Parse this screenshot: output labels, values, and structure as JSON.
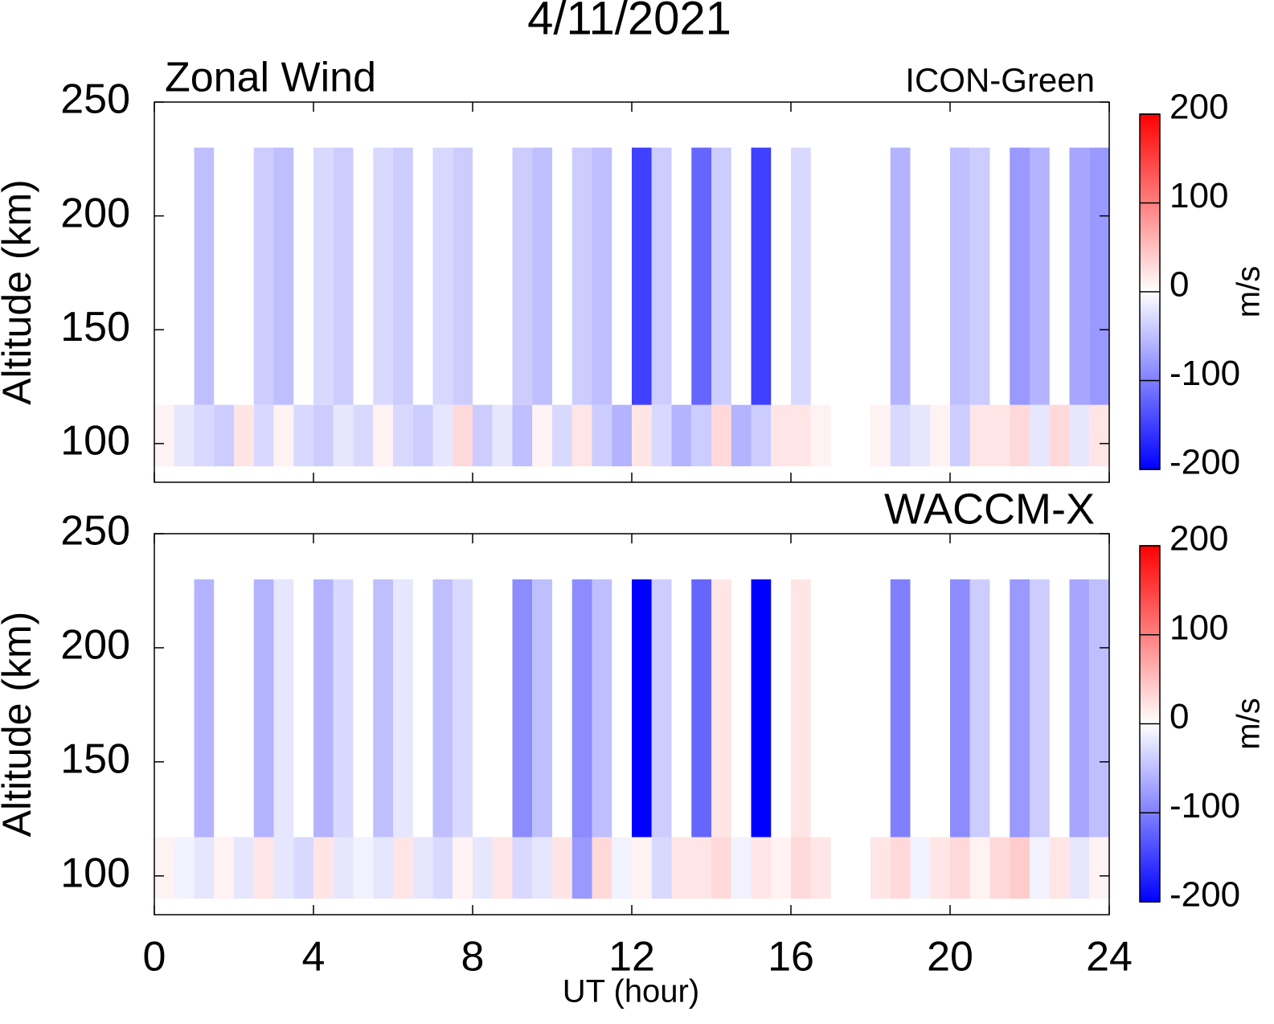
{
  "chart_data": [
    {
      "type": "heatmap",
      "title": "4/11/2021",
      "subtitle": "Zonal Wind",
      "annotation": "ICON-Green",
      "ylabel": "Altitude (km)",
      "xlim": [
        0,
        24
      ],
      "xticks": [
        0,
        4,
        8,
        12,
        16,
        20,
        24
      ],
      "ylim": [
        83,
        250
      ],
      "yticks": [
        100,
        150,
        200,
        250
      ],
      "x": [
        0,
        0.5,
        1,
        1.5,
        2,
        2.5,
        3,
        3.5,
        4,
        4.5,
        5,
        5.5,
        6,
        6.5,
        7,
        7.5,
        8,
        8.5,
        9,
        9.5,
        10,
        10.5,
        11,
        11.5,
        12,
        12.5,
        13,
        13.5,
        14,
        14.5,
        15,
        15.5,
        16,
        16.5,
        17,
        17.5,
        18,
        18.5,
        19,
        19.5,
        20,
        20.5,
        21,
        21.5,
        22,
        22.5,
        23,
        23.5,
        24
      ],
      "y": [
        90,
        117,
        230
      ],
      "values": [
        [
          10,
          -20,
          -30,
          -40,
          20,
          -30,
          10,
          -30,
          -40,
          -20,
          -30,
          10,
          -30,
          -40,
          -20,
          30,
          -40,
          -20,
          -50,
          10,
          -30,
          20,
          -40,
          -60,
          20,
          -30,
          -60,
          -40,
          30,
          -60,
          -40,
          20,
          20,
          10,
          null,
          null,
          10,
          -30,
          -20,
          10,
          -40,
          20,
          20,
          30,
          -20,
          30,
          -20,
          20
        ],
        [
          null,
          null,
          -50,
          null,
          null,
          -40,
          -50,
          null,
          -30,
          -40,
          null,
          -30,
          -40,
          null,
          -30,
          -40,
          null,
          null,
          -40,
          -50,
          null,
          -40,
          -50,
          null,
          -150,
          -40,
          null,
          -120,
          -40,
          null,
          -150,
          null,
          -30,
          null,
          null,
          null,
          null,
          -60,
          null,
          null,
          -50,
          -40,
          null,
          -80,
          -60,
          null,
          -70,
          -80
        ]
      ],
      "clim": [
        -200,
        200
      ],
      "cticks": [
        -200,
        -100,
        0,
        100,
        200
      ],
      "clabel": "m/s",
      "colors": [
        "#0000ff",
        "#ffffff",
        "#ff0000"
      ]
    },
    {
      "type": "heatmap",
      "annotation": "WACCM-X",
      "ylabel": "Altitude (km)",
      "xlabel": "UT (hour)",
      "xlim": [
        0,
        24
      ],
      "xticks": [
        0,
        4,
        8,
        12,
        16,
        20,
        24
      ],
      "ylim": [
        83,
        250
      ],
      "yticks": [
        100,
        150,
        200,
        250
      ],
      "x": [
        0,
        0.5,
        1,
        1.5,
        2,
        2.5,
        3,
        3.5,
        4,
        4.5,
        5,
        5.5,
        6,
        6.5,
        7,
        7.5,
        8,
        8.5,
        9,
        9.5,
        10,
        10.5,
        11,
        11.5,
        12,
        12.5,
        13,
        13.5,
        14,
        14.5,
        15,
        15.5,
        16,
        16.5,
        17,
        17.5,
        18,
        18.5,
        19,
        19.5,
        20,
        20.5,
        21,
        21.5,
        22,
        22.5,
        23,
        23.5,
        24
      ],
      "y": [
        90,
        117,
        230
      ],
      "values": [
        [
          10,
          -10,
          -20,
          10,
          -20,
          20,
          -20,
          -30,
          20,
          -20,
          -10,
          -20,
          20,
          -20,
          -30,
          10,
          -20,
          20,
          -30,
          -20,
          20,
          -80,
          30,
          -10,
          10,
          -30,
          20,
          20,
          30,
          -10,
          20,
          10,
          30,
          20,
          null,
          null,
          20,
          30,
          -10,
          20,
          30,
          10,
          30,
          40,
          -10,
          20,
          -20,
          10
        ],
        [
          null,
          null,
          -60,
          null,
          null,
          -60,
          -20,
          null,
          -60,
          -30,
          null,
          -50,
          -20,
          null,
          -50,
          -30,
          null,
          null,
          -90,
          -50,
          null,
          -90,
          -50,
          null,
          -200,
          -40,
          null,
          -120,
          20,
          null,
          -200,
          null,
          20,
          null,
          null,
          null,
          null,
          -100,
          null,
          null,
          -90,
          -40,
          null,
          -80,
          -40,
          null,
          -70,
          -50
        ]
      ],
      "clim": [
        -200,
        200
      ],
      "cticks": [
        -200,
        -100,
        0,
        100,
        200
      ],
      "clabel": "m/s",
      "colors": [
        "#0000ff",
        "#ffffff",
        "#ff0000"
      ]
    }
  ]
}
